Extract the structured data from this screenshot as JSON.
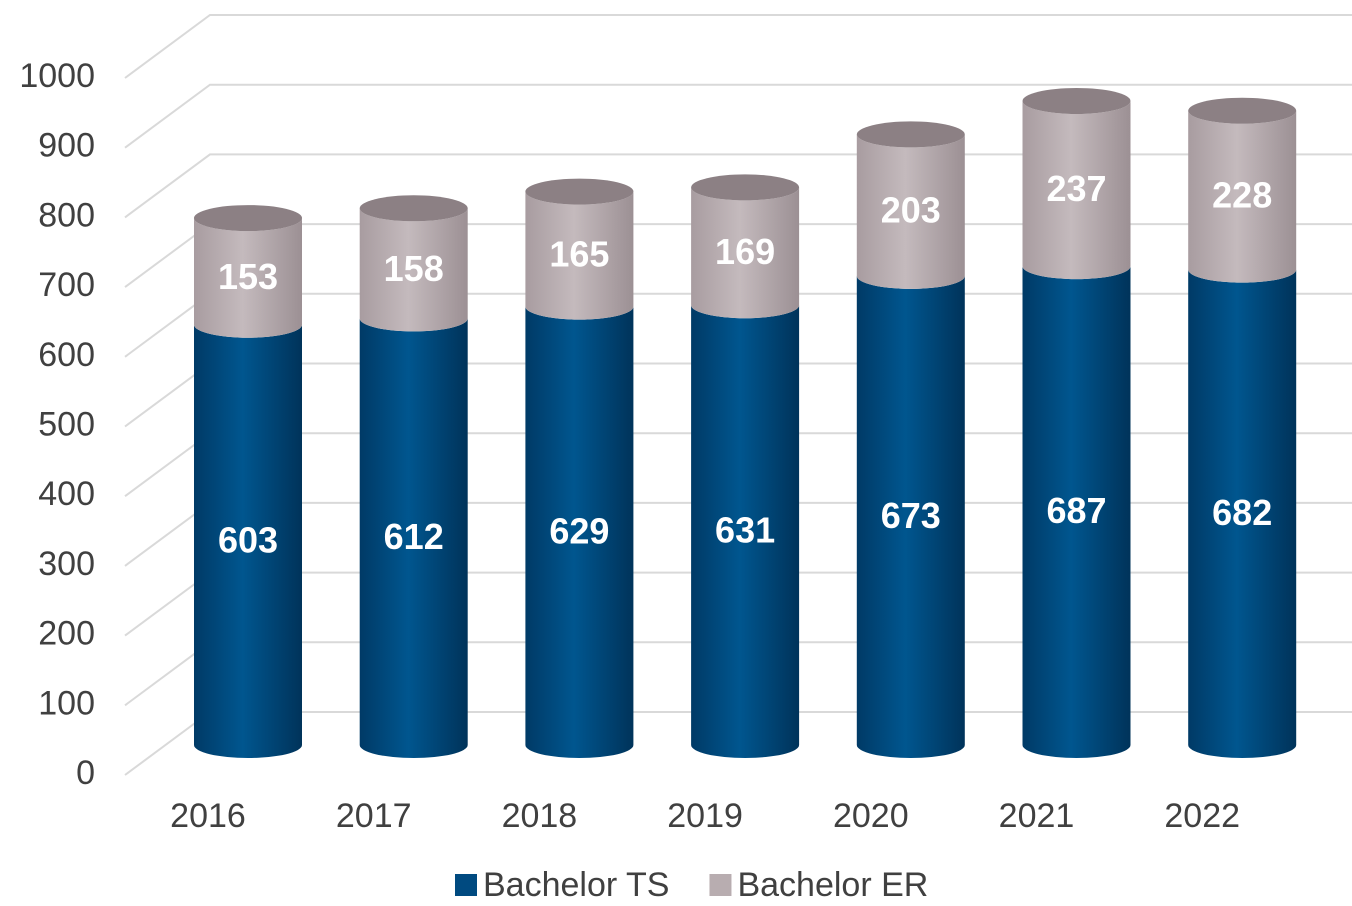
{
  "chart_data": {
    "type": "bar3d_stacked_cylinder",
    "categories": [
      "2016",
      "2017",
      "2018",
      "2019",
      "2020",
      "2021",
      "2022"
    ],
    "series": [
      {
        "name": "Bachelor TS",
        "color": "#004a80",
        "values": [
          603,
          612,
          629,
          631,
          673,
          687,
          682
        ]
      },
      {
        "name": "Bachelor ER",
        "color": "#b8adb0",
        "values": [
          153,
          158,
          165,
          169,
          203,
          237,
          228
        ]
      }
    ],
    "ylim": [
      0,
      1000
    ],
    "yticks": [
      0,
      100,
      200,
      300,
      400,
      500,
      600,
      700,
      800,
      900,
      1000
    ],
    "grid": true,
    "legend": "bottom"
  }
}
